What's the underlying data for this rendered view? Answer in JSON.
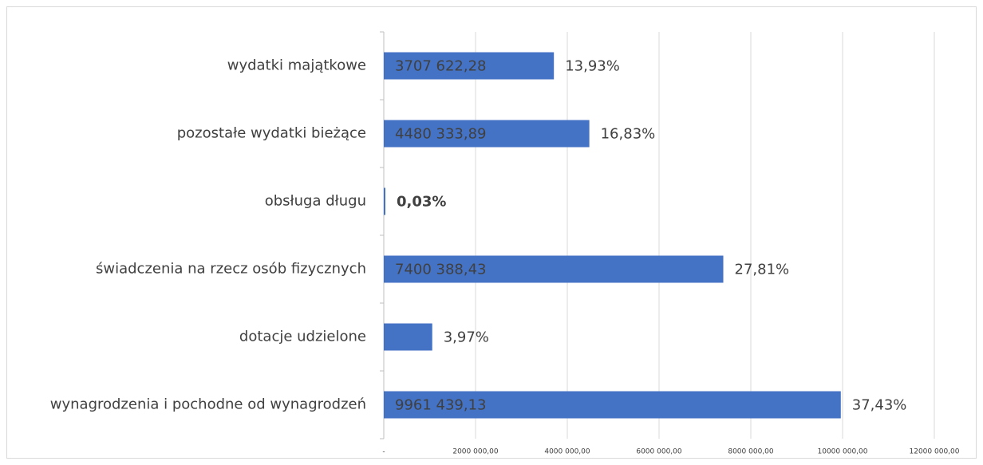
{
  "chart_data": {
    "type": "barh",
    "categories": [
      "wydatki majątkowe",
      "pozostałe wydatki bieżące",
      "obsługa długu",
      "świadczenia na rzecz osób fizycznych",
      "dotacje udzielone",
      "wynagrodzenia i pochodne od wynagrodzeń"
    ],
    "values": [
      3707622.28,
      4480333.89,
      8000,
      7400388.43,
      1056000,
      9961439.13
    ],
    "value_labels": [
      "3707 622,28",
      "4480 333,89",
      null,
      "7400 388,43",
      null,
      "9961 439,13"
    ],
    "share_labels": [
      "13,93%",
      "16,83%",
      "0,03%",
      "27,81%",
      "3,97%",
      "37,43%"
    ],
    "share_label_bold": [
      false,
      false,
      true,
      false,
      false,
      false
    ],
    "color": "#4472c4",
    "xlim": [
      0,
      12000000
    ],
    "xticks": [
      {
        "value": 0,
        "label": "-"
      },
      {
        "value": 2000000,
        "label": "2000 000,00"
      },
      {
        "value": 4000000,
        "label": "4000 000,00"
      },
      {
        "value": 6000000,
        "label": "6000 000,00"
      },
      {
        "value": 8000000,
        "label": "8000 000,00"
      },
      {
        "value": 10000000,
        "label": "10000 000,00"
      },
      {
        "value": 12000000,
        "label": "12000 000,00"
      }
    ],
    "grid": true
  }
}
